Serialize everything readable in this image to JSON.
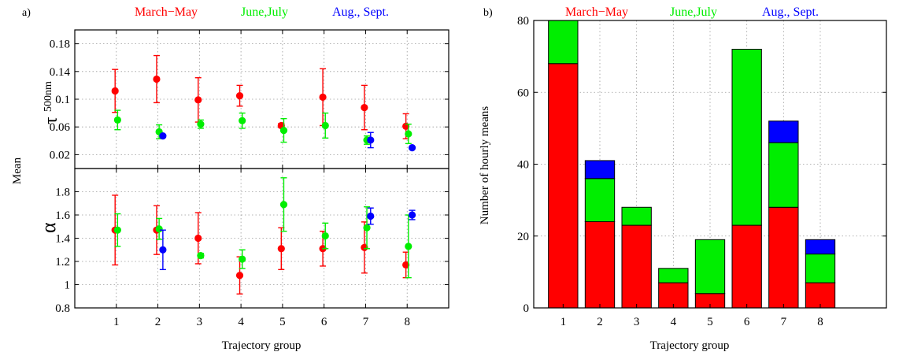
{
  "colors": {
    "march_may": "#ff0000",
    "june_july": "#00ee00",
    "aug_sept": "#0000ff"
  },
  "chart_data": [
    {
      "type": "scatter",
      "panel_label": "a)",
      "xlabel": "Trajectory group",
      "shared_ylabel": "Mean",
      "x_ticks": [
        "1",
        "2",
        "3",
        "4",
        "5",
        "6",
        "7",
        "8"
      ],
      "xlim": [
        0,
        9
      ],
      "legend": {
        "placement": "top",
        "entries": [
          "March−May",
          "June,July",
          "Aug., Sept."
        ]
      },
      "grid": true,
      "subplots": [
        {
          "ylabel_symbol": "τ",
          "ylabel_subscript": "500nm",
          "ylim": [
            0,
            0.2
          ],
          "y_ticks": [
            "0.02",
            "0.06",
            "0.1",
            "0.14",
            "0.18"
          ],
          "series": [
            {
              "name": "March−May",
              "x": [
                1,
                2,
                3,
                4,
                5,
                6,
                7,
                8
              ],
              "y": [
                0.112,
                0.129,
                0.099,
                0.105,
                0.062,
                0.103,
                0.088,
                0.061
              ],
              "err": [
                0.031,
                0.034,
                0.032,
                0.015,
                0.003,
                0.041,
                0.032,
                0.018
              ]
            },
            {
              "name": "June,July",
              "x": [
                1,
                2,
                3,
                4,
                5,
                6,
                7,
                8
              ],
              "y": [
                0.07,
                0.053,
                0.064,
                0.069,
                0.055,
                0.062,
                0.041,
                0.05
              ],
              "err": [
                0.014,
                0.01,
                0.006,
                0.011,
                0.017,
                0.018,
                0.006,
                0.014
              ]
            },
            {
              "name": "Aug., Sept.",
              "x": [
                2,
                7,
                8
              ],
              "y": [
                0.047,
                0.041,
                0.03
              ],
              "err": [
                0.0,
                0.011,
                0.0
              ]
            }
          ]
        },
        {
          "ylabel_symbol": "α",
          "ylim": [
            0.8,
            2.0
          ],
          "y_ticks": [
            "0.8",
            "1",
            "1.2",
            "1.4",
            "1.6",
            "1.8"
          ],
          "series": [
            {
              "name": "March−May",
              "x": [
                1,
                2,
                3,
                4,
                5,
                6,
                7,
                8
              ],
              "y": [
                1.47,
                1.47,
                1.4,
                1.08,
                1.31,
                1.31,
                1.32,
                1.17
              ],
              "err": [
                0.3,
                0.21,
                0.22,
                0.16,
                0.18,
                0.15,
                0.22,
                0.11
              ]
            },
            {
              "name": "June,July",
              "x": [
                1,
                2,
                3,
                4,
                5,
                6,
                7,
                8
              ],
              "y": [
                1.47,
                1.48,
                1.25,
                1.22,
                1.69,
                1.42,
                1.49,
                1.33
              ],
              "err": [
                0.14,
                0.09,
                0.02,
                0.08,
                0.23,
                0.11,
                0.18,
                0.27
              ]
            },
            {
              "name": "Aug., Sept.",
              "x": [
                2,
                7,
                8
              ],
              "y": [
                1.3,
                1.59,
                1.6
              ],
              "err": [
                0.17,
                0.07,
                0.04
              ]
            }
          ]
        }
      ]
    },
    {
      "type": "bar",
      "stacked": true,
      "panel_label": "b)",
      "xlabel": "Trajectory group",
      "ylabel": "Number of hourly means",
      "categories": [
        "1",
        "2",
        "3",
        "4",
        "5",
        "6",
        "7",
        "8"
      ],
      "ylim": [
        0,
        80
      ],
      "y_ticks": [
        "0",
        "20",
        "40",
        "60",
        "80"
      ],
      "xlim": [
        0.2,
        9.8
      ],
      "grid": true,
      "legend": {
        "placement": "top",
        "entries": [
          "March−May",
          "June,July",
          "Aug., Sept."
        ]
      },
      "series": [
        {
          "name": "March−May",
          "values": [
            68,
            24,
            23,
            7,
            4,
            23,
            28,
            7
          ]
        },
        {
          "name": "June,July",
          "values": [
            12,
            12,
            5,
            4,
            15,
            49,
            18,
            8
          ]
        },
        {
          "name": "Aug., Sept.",
          "values": [
            0,
            5,
            0,
            0,
            0,
            0,
            6,
            4
          ]
        }
      ]
    }
  ]
}
